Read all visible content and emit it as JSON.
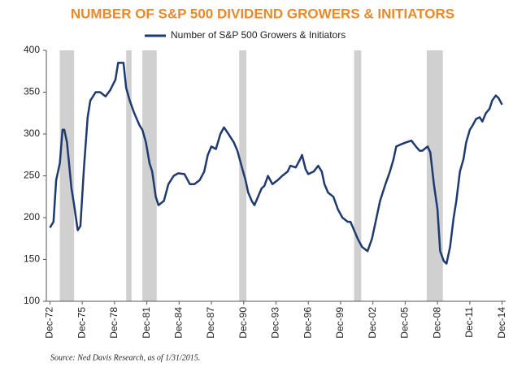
{
  "chart_data": {
    "type": "line",
    "title": "NUMBER OF S&P 500 DIVIDEND GROWERS & INITIATORS",
    "source": "Source: Ned Davis Research, as of 1/31/2015.",
    "x": [
      "1972-12",
      "1973-04",
      "1973-07",
      "1973-11",
      "1974-02",
      "1974-04",
      "1974-07",
      "1974-12",
      "1975-03",
      "1975-07",
      "1975-10",
      "1976-02",
      "1976-06",
      "1976-09",
      "1977-03",
      "1977-08",
      "1978-02",
      "1978-07",
      "1979-01",
      "1979-04",
      "1979-10",
      "1980-01",
      "1980-05",
      "1980-10",
      "1981-04",
      "1981-07",
      "1981-11",
      "1982-03",
      "1982-06",
      "1982-10",
      "1983-01",
      "1983-07",
      "1983-12",
      "1984-06",
      "1984-11",
      "1985-06",
      "1985-12",
      "1986-05",
      "1986-11",
      "1987-04",
      "1987-08",
      "1987-12",
      "1988-05",
      "1988-10",
      "1989-02",
      "1989-07",
      "1990-01",
      "1990-05",
      "1990-10",
      "1991-02",
      "1991-05",
      "1991-09",
      "1991-12",
      "1992-04",
      "1992-08",
      "1992-11",
      "1993-03",
      "1993-08",
      "1994-02",
      "1994-07",
      "1995-01",
      "1995-04",
      "1995-10",
      "1996-03",
      "1996-05",
      "1996-09",
      "1996-12",
      "1997-06",
      "1997-11",
      "1998-03",
      "1998-06",
      "1998-10",
      "1999-04",
      "1999-09",
      "2000-02",
      "2000-08",
      "2000-11",
      "2001-03",
      "2001-07",
      "2001-12",
      "2002-06",
      "2002-11",
      "2003-04",
      "2003-08",
      "2004-02",
      "2004-07",
      "2004-11",
      "2005-02",
      "2005-08",
      "2006-01",
      "2006-07",
      "2006-12",
      "2007-04",
      "2007-07",
      "2008-01",
      "2008-04",
      "2008-08",
      "2008-12",
      "2009-03",
      "2009-07",
      "2009-10",
      "2010-02",
      "2010-06",
      "2010-09",
      "2011-01",
      "2011-05",
      "2011-08",
      "2011-12",
      "2012-03",
      "2012-07",
      "2012-11",
      "2013-02",
      "2013-06",
      "2013-10",
      "2014-01",
      "2014-05",
      "2014-08",
      "2014-12"
    ],
    "series": [
      {
        "name": "Number of S&P 500 Growers & Initiators",
        "color": "#1f3a6e",
        "values": [
          188,
          195,
          245,
          265,
          305,
          305,
          290,
          235,
          215,
          185,
          190,
          260,
          320,
          340,
          350,
          350,
          345,
          352,
          365,
          385,
          385,
          355,
          340,
          325,
          310,
          305,
          290,
          265,
          255,
          225,
          215,
          220,
          240,
          250,
          253,
          252,
          240,
          240,
          245,
          255,
          275,
          285,
          282,
          300,
          308,
          300,
          290,
          280,
          260,
          245,
          230,
          220,
          215,
          225,
          235,
          238,
          250,
          240,
          245,
          250,
          255,
          262,
          260,
          270,
          275,
          258,
          252,
          255,
          262,
          255,
          240,
          230,
          225,
          210,
          200,
          195,
          195,
          185,
          175,
          165,
          160,
          175,
          200,
          220,
          240,
          255,
          270,
          285,
          288,
          290,
          292,
          285,
          280,
          280,
          285,
          278,
          240,
          210,
          160,
          148,
          145,
          165,
          200,
          220,
          255,
          270,
          290,
          305,
          310,
          318,
          320,
          315,
          325,
          330,
          340,
          346,
          343,
          335
        ]
      }
    ],
    "shaded_periods": [
      {
        "start": "1973-11",
        "end": "1975-03"
      },
      {
        "start": "1980-01",
        "end": "1980-07"
      },
      {
        "start": "1981-07",
        "end": "1982-11"
      },
      {
        "start": "1990-07",
        "end": "1991-03"
      },
      {
        "start": "2001-03",
        "end": "2001-11"
      },
      {
        "start": "2007-12",
        "end": "2009-06"
      }
    ],
    "shade_color": "#d0d0d0",
    "xlim": [
      "1972-08",
      "2015-04"
    ],
    "xticks": [
      {
        "value": "1972-12",
        "label": "Dec-72"
      },
      {
        "value": "1975-12",
        "label": "Dec-75"
      },
      {
        "value": "1978-12",
        "label": "Dec-78"
      },
      {
        "value": "1981-12",
        "label": "Dec-81"
      },
      {
        "value": "1984-12",
        "label": "Dec-84"
      },
      {
        "value": "1987-12",
        "label": "Dec-87"
      },
      {
        "value": "1990-12",
        "label": "Dec-90"
      },
      {
        "value": "1993-12",
        "label": "Dec-93"
      },
      {
        "value": "1996-12",
        "label": "Dec-96"
      },
      {
        "value": "1999-12",
        "label": "Dec-99"
      },
      {
        "value": "2002-12",
        "label": "Dec-02"
      },
      {
        "value": "2005-12",
        "label": "Dec-05"
      },
      {
        "value": "2008-12",
        "label": "Dec-08"
      },
      {
        "value": "2011-12",
        "label": "Dec-11"
      },
      {
        "value": "2014-12",
        "label": "Dec-14"
      }
    ],
    "ylim": [
      100,
      400
    ],
    "yticks": [
      100,
      150,
      200,
      250,
      300,
      350,
      400
    ]
  }
}
